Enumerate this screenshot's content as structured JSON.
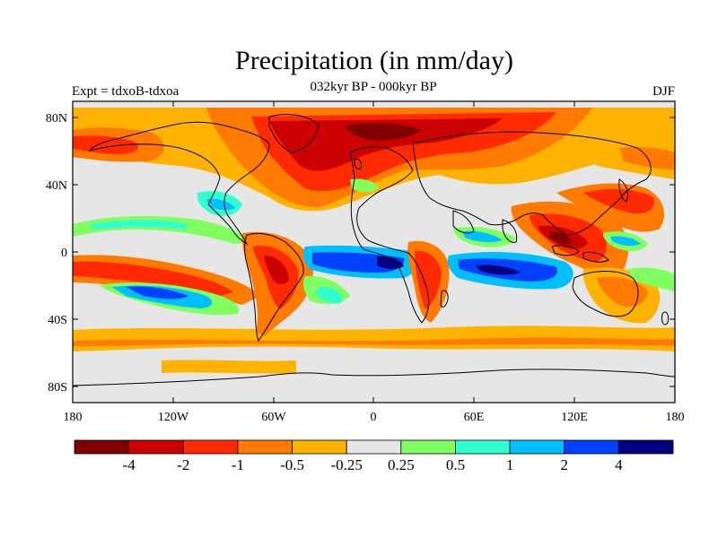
{
  "header": {
    "title": "Precipitation (in mm/day)",
    "subtitle": "032kyr BP - 000kyr BP",
    "left_label": "Expt = tdxoB-tdxoa",
    "right_label": "DJF"
  },
  "axes": {
    "lat_ticks": [
      "80N",
      "40N",
      "0",
      "40S",
      "80S"
    ],
    "lon_ticks": [
      "180",
      "120W",
      "60W",
      "0",
      "60E",
      "120E",
      "180"
    ]
  },
  "colorbar": {
    "colors": [
      "#800000",
      "#cc0000",
      "#ff2a00",
      "#ff7a00",
      "#ffb300",
      "#e6e6e6",
      "#80ff60",
      "#30ffd0",
      "#00bfff",
      "#0040ff",
      "#000080"
    ],
    "labels": [
      "-4",
      "-2",
      "-1",
      "-0.5",
      "-0.25",
      "0.25",
      "0.5",
      "1",
      "2",
      "4"
    ]
  },
  "map": {
    "background_color": "#e6e6e6",
    "coastline_color": "#000000"
  }
}
